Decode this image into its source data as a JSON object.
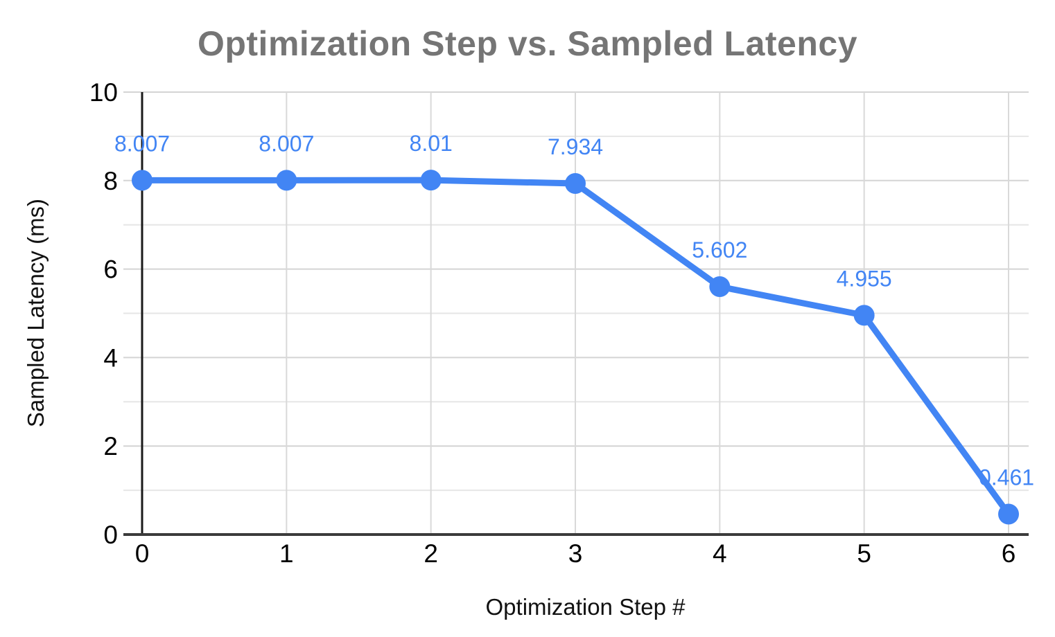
{
  "chart_data": {
    "type": "line",
    "title": "Optimization Step vs. Sampled Latency",
    "xlabel": "Optimization Step #",
    "ylabel": "Sampled Latency (ms)",
    "x": [
      0,
      1,
      2,
      3,
      4,
      5,
      6
    ],
    "series": [
      {
        "name": "Sampled Latency (ms)",
        "values": [
          8.007,
          8.007,
          8.01,
          7.934,
          5.602,
          4.955,
          0.461
        ]
      }
    ],
    "point_labels": [
      "8.007",
      "8.007",
      "8.01",
      "7.934",
      "5.602",
      "4.955",
      "0.461"
    ],
    "xtick_labels": [
      "0",
      "1",
      "2",
      "3",
      "4",
      "5",
      "6"
    ],
    "ytick_values": [
      0,
      2,
      4,
      6,
      8,
      10
    ],
    "ytick_labels": [
      "0",
      "2",
      "4",
      "6",
      "8",
      "10"
    ],
    "y_minor_gridlines": [
      1,
      3,
      5,
      7,
      9
    ],
    "xlim": [
      0,
      6.14
    ],
    "ylim": [
      0,
      10
    ],
    "grid": "on",
    "legend": "none",
    "marker": "circle",
    "colors": {
      "series": "#4285F4",
      "data_label": "#4285F4",
      "title": "#757575",
      "axis_text": "#111111",
      "tick_text": "#000000",
      "grid_major": "#d4d4d4",
      "grid_minor": "#e6e6e6",
      "grid_vertical": "#d9d9d9",
      "x_axis_line": "#3b3b3b",
      "y_axis_line": "#1a1a1a",
      "background": "#ffffff"
    }
  }
}
